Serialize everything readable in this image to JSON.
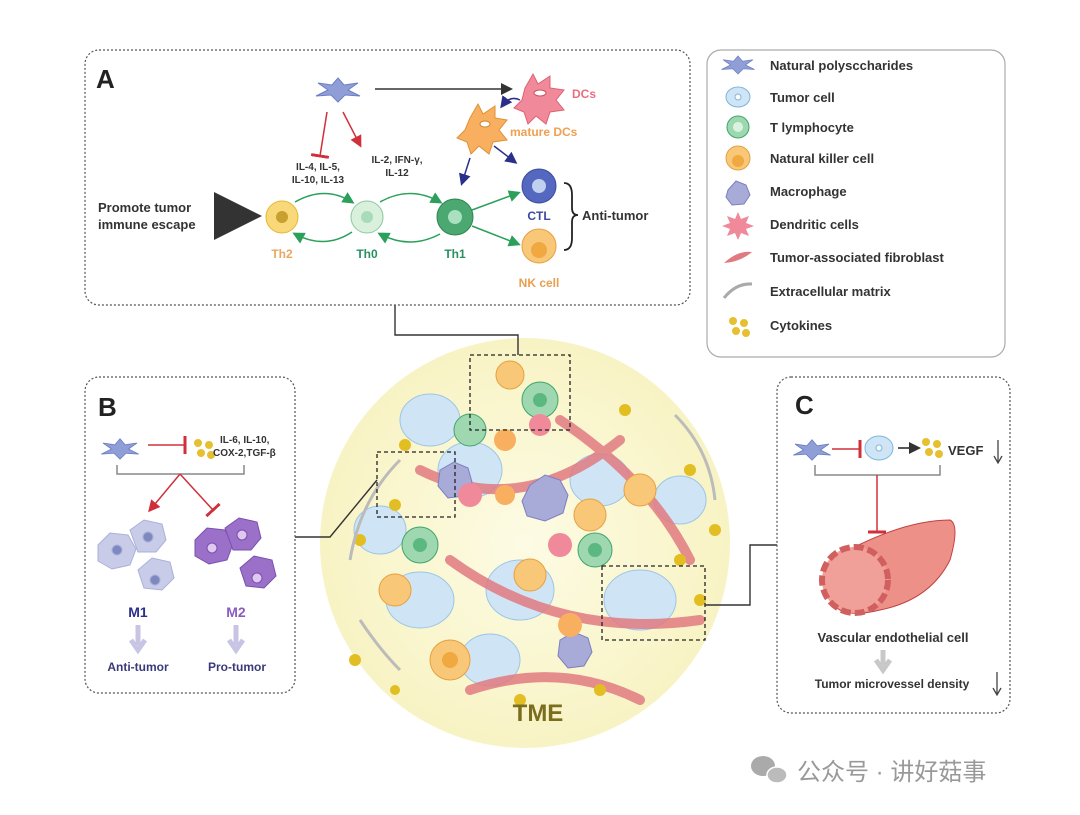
{
  "panel_a": {
    "label": "A",
    "cytokines_inhibited": [
      "IL-4, IL-5,",
      "IL-10, IL-13"
    ],
    "cytokines_promoted": [
      "IL-2, IFN-γ,",
      "IL-12"
    ],
    "outcome_left": [
      "Promote tumor",
      "immune escape"
    ],
    "cells": {
      "th2": "Th2",
      "th0": "Th0",
      "th1": "Th1",
      "ctl": "CTL",
      "nk": "NK cell",
      "dcs": "DCs",
      "mature_dcs": "mature DCs"
    },
    "outcome_right": "Anti-tumor"
  },
  "legend": {
    "items": [
      {
        "label": "Natural polysccharides",
        "icon": "star-polysaccharide-icon"
      },
      {
        "label": "Tumor cell",
        "icon": "tumor-cell-icon"
      },
      {
        "label": "T lymphocyte",
        "icon": "t-lymphocyte-icon"
      },
      {
        "label": "Natural killer cell",
        "icon": "nk-cell-icon"
      },
      {
        "label": "Macrophage",
        "icon": "macrophage-icon"
      },
      {
        "label": "Dendritic cells",
        "icon": "dendritic-cell-icon"
      },
      {
        "label": "Tumor-associated fibroblast",
        "icon": "fibroblast-icon"
      },
      {
        "label": "Extracellular matrix",
        "icon": "matrix-icon"
      },
      {
        "label": "Cytokines",
        "icon": "cytokines-icon"
      }
    ]
  },
  "panel_b": {
    "label": "B",
    "cytokines": [
      "IL-6, IL-10,",
      "COX-2,TGF-β"
    ],
    "m1": "M1",
    "m2": "M2",
    "m1_outcome": "Anti-tumor",
    "m2_outcome": "Pro-tumor"
  },
  "panel_c": {
    "label": "C",
    "vegf": "VEGF",
    "vessel_label": "Vascular endothelial cell",
    "outcome": "Tumor microvessel density"
  },
  "center": {
    "label": "TME"
  },
  "watermark": "公众号 · 讲好菇事",
  "colors": {
    "tme_bg": "#fbf8d8",
    "tme_text": "#7a6e1e",
    "inhibit": "#d0303a",
    "promote": "#2aa05a",
    "dc_arrow": "#2a2f8a"
  }
}
